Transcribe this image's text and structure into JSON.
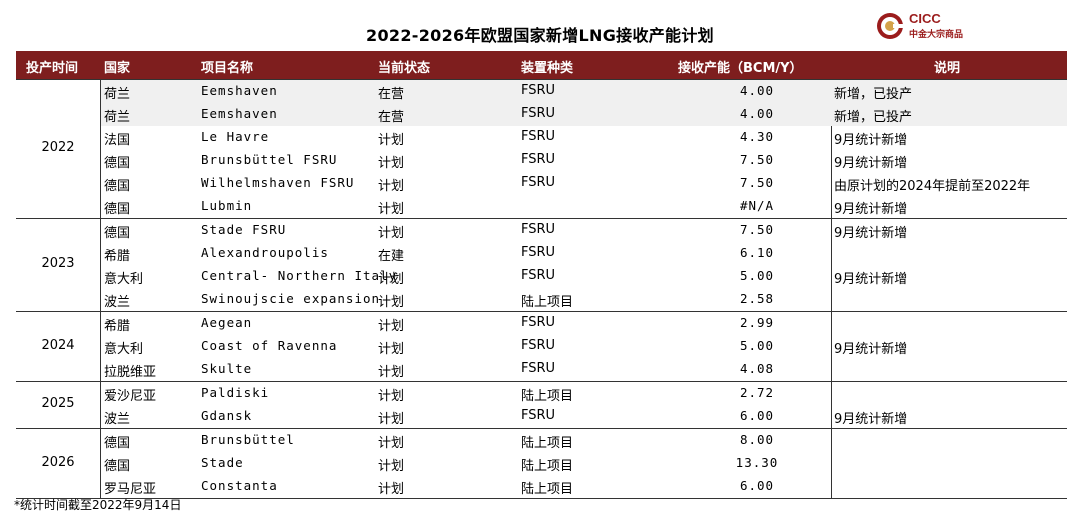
{
  "title": "2022-2026年欧盟国家新增LNG接收产能计划",
  "logo": {
    "brand": "CICC",
    "subtitle": "中金大宗商品"
  },
  "columns": [
    "投产时间",
    "国家",
    "项目名称",
    "当前状态",
    "装置种类",
    "接收产能（BCM/Y）",
    "说明"
  ],
  "groups": [
    {
      "year": "2022",
      "rows": [
        {
          "country": "荷兰",
          "project": "Eemshaven",
          "status": "在营",
          "type": "FSRU",
          "capacity": "4.00",
          "note": "新增，已投产",
          "shaded": true
        },
        {
          "country": "荷兰",
          "project": "Eemshaven",
          "status": "在营",
          "type": "FSRU",
          "capacity": "4.00",
          "note": "新增，已投产",
          "shaded": true
        },
        {
          "country": "法国",
          "project": "Le Havre",
          "status": "计划",
          "type": "FSRU",
          "capacity": "4.30",
          "note": "9月统计新增"
        },
        {
          "country": "德国",
          "project": "Brunsbüttel FSRU",
          "status": "计划",
          "type": "FSRU",
          "capacity": "7.50",
          "note": "9月统计新增"
        },
        {
          "country": "德国",
          "project": "Wilhelmshaven FSRU",
          "status": "计划",
          "type": "FSRU",
          "capacity": "7.50",
          "note": "由原计划的2024年提前至2022年"
        },
        {
          "country": "德国",
          "project": "Lubmin",
          "status": "计划",
          "type": "",
          "capacity": "#N/A",
          "note": "9月统计新增"
        }
      ]
    },
    {
      "year": "2023",
      "rows": [
        {
          "country": "德国",
          "project": "Stade FSRU",
          "status": "计划",
          "type": "FSRU",
          "capacity": "7.50",
          "note": "9月统计新增"
        },
        {
          "country": "希腊",
          "project": "Alexandroupolis",
          "status": "在建",
          "type": "FSRU",
          "capacity": "6.10",
          "note": ""
        },
        {
          "country": "意大利",
          "project": "Central- Northern Italy",
          "status": "计划",
          "type": "FSRU",
          "capacity": "5.00",
          "note": "9月统计新增"
        },
        {
          "country": "波兰",
          "project": "Swinoujscie expansion",
          "status": "计划",
          "type": "陆上项目",
          "capacity": "2.58",
          "note": ""
        }
      ]
    },
    {
      "year": "2024",
      "rows": [
        {
          "country": "希腊",
          "project": "Aegean",
          "status": "计划",
          "type": "FSRU",
          "capacity": "2.99",
          "note": ""
        },
        {
          "country": "意大利",
          "project": "Coast of Ravenna",
          "status": "计划",
          "type": "FSRU",
          "capacity": "5.00",
          "note": "9月统计新增"
        },
        {
          "country": "拉脱维亚",
          "project": "Skulte",
          "status": "计划",
          "type": "FSRU",
          "capacity": "4.08",
          "note": ""
        }
      ]
    },
    {
      "year": "2025",
      "rows": [
        {
          "country": "爱沙尼亚",
          "project": "Paldiski",
          "status": "计划",
          "type": "陆上项目",
          "capacity": "2.72",
          "note": ""
        },
        {
          "country": "波兰",
          "project": "Gdansk",
          "status": "计划",
          "type": "FSRU",
          "capacity": "6.00",
          "note": "9月统计新增"
        }
      ]
    },
    {
      "year": "2026",
      "rows": [
        {
          "country": "德国",
          "project": "Brunsbüttel",
          "status": "计划",
          "type": "陆上项目",
          "capacity": "8.00",
          "note": ""
        },
        {
          "country": "德国",
          "project": "Stade",
          "status": "计划",
          "type": "陆上项目",
          "capacity": "13.30",
          "note": ""
        },
        {
          "country": "罗马尼亚",
          "project": "Constanta",
          "status": "计划",
          "type": "陆上项目",
          "capacity": "6.00",
          "note": ""
        }
      ]
    }
  ],
  "footnote": "*统计时间截至2022年9月14日",
  "colors": {
    "header_bg": "#7e1e1e",
    "header_text": "#ffffff",
    "brand": "#9b1c1c",
    "shaded_row": "#f0f0f0"
  }
}
